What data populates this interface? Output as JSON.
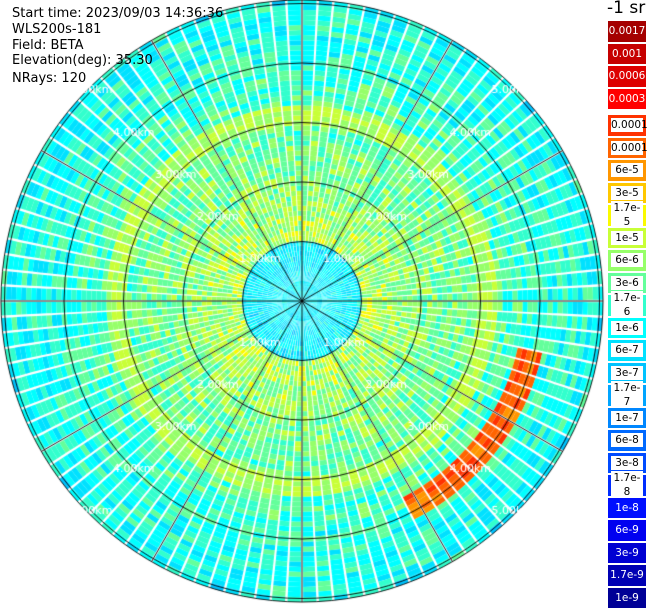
{
  "info": {
    "start_time": "Start time: 2023/09/03 14:36:36",
    "instrument": "WLS200s-181",
    "field": "Field: BETA",
    "elevation": "Elevation(deg): 35.30",
    "nrays": "NRays: 120"
  },
  "chart_data": {
    "type": "heatmap",
    "title": "",
    "range_rings_km": [
      1,
      2,
      3,
      4,
      5
    ],
    "ring_labels": [
      "1.00km",
      "2.00km",
      "3.00km",
      "4.00km",
      "5.00km"
    ],
    "spokes_deg": 30,
    "nrays": 120,
    "colorbar": {
      "title": "-1 sr",
      "labels": [
        "0.0017",
        "0.001",
        "0.0006",
        "0.0003",
        "0.00017",
        "0.0001",
        "6e-5",
        "3e-5",
        "1.7e-5",
        "1e-5",
        "6e-6",
        "3e-6",
        "1.7e-6",
        "1e-6",
        "6e-7",
        "3e-7",
        "1.7e-7",
        "1e-7",
        "6e-8",
        "3e-8",
        "1.7e-8",
        "1e-8",
        "6e-9",
        "3e-9",
        "1.7e-9",
        "1e-9"
      ],
      "colors": [
        "#a50000",
        "#c60000",
        "#dd0000",
        "#ff0000",
        "#ff3200",
        "#ff6400",
        "#ff9600",
        "#ffc800",
        "#fafa00",
        "#c8ff37",
        "#96ff69",
        "#64ff9b",
        "#32ffcd",
        "#00ffff",
        "#00e1ff",
        "#00c3ff",
        "#00a5ff",
        "#0087ff",
        "#0069ff",
        "#004bff",
        "#002dff",
        "#000fff",
        "#0000f0",
        "#0000d2",
        "#0000b4",
        "#000096"
      ]
    },
    "features": [
      {
        "name": "aerosol ring",
        "range_km": 3.1,
        "level": "1e-5"
      },
      {
        "name": "hot spot",
        "azimuth_deg": 115,
        "range_km": 4.0,
        "level": "6e-5"
      }
    ]
  }
}
